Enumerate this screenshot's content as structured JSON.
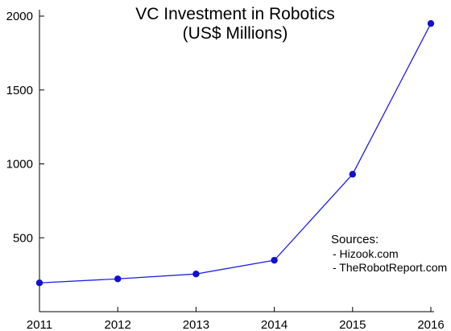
{
  "chart_data": {
    "type": "line",
    "title": "VC Investment in Robotics",
    "subtitle": "(US$ Millions)",
    "xlabel": "",
    "ylabel": "",
    "x": [
      2011,
      2012,
      2013,
      2014,
      2015,
      2016
    ],
    "series": [
      {
        "values": [
          195,
          222,
          255,
          348,
          930,
          1950
        ]
      }
    ],
    "ylim": [
      0,
      2000
    ],
    "xlim": [
      2011,
      2016
    ],
    "yticks": [
      500,
      1000,
      1500,
      2000
    ],
    "ytick_labels": [
      "500",
      "1000",
      "1500",
      "2000"
    ],
    "xtick_labels": [
      "2011",
      "2012",
      "2013",
      "2014",
      "2015",
      "2016"
    ],
    "grid": false,
    "legend": "none",
    "colors": {
      "line": "#2020e8",
      "marker": "#1010d0",
      "axis": "#000000"
    },
    "annotation": {
      "heading": "Sources:",
      "lines": [
        "- Hizook.com",
        "- TheRobotReport.com"
      ]
    }
  }
}
